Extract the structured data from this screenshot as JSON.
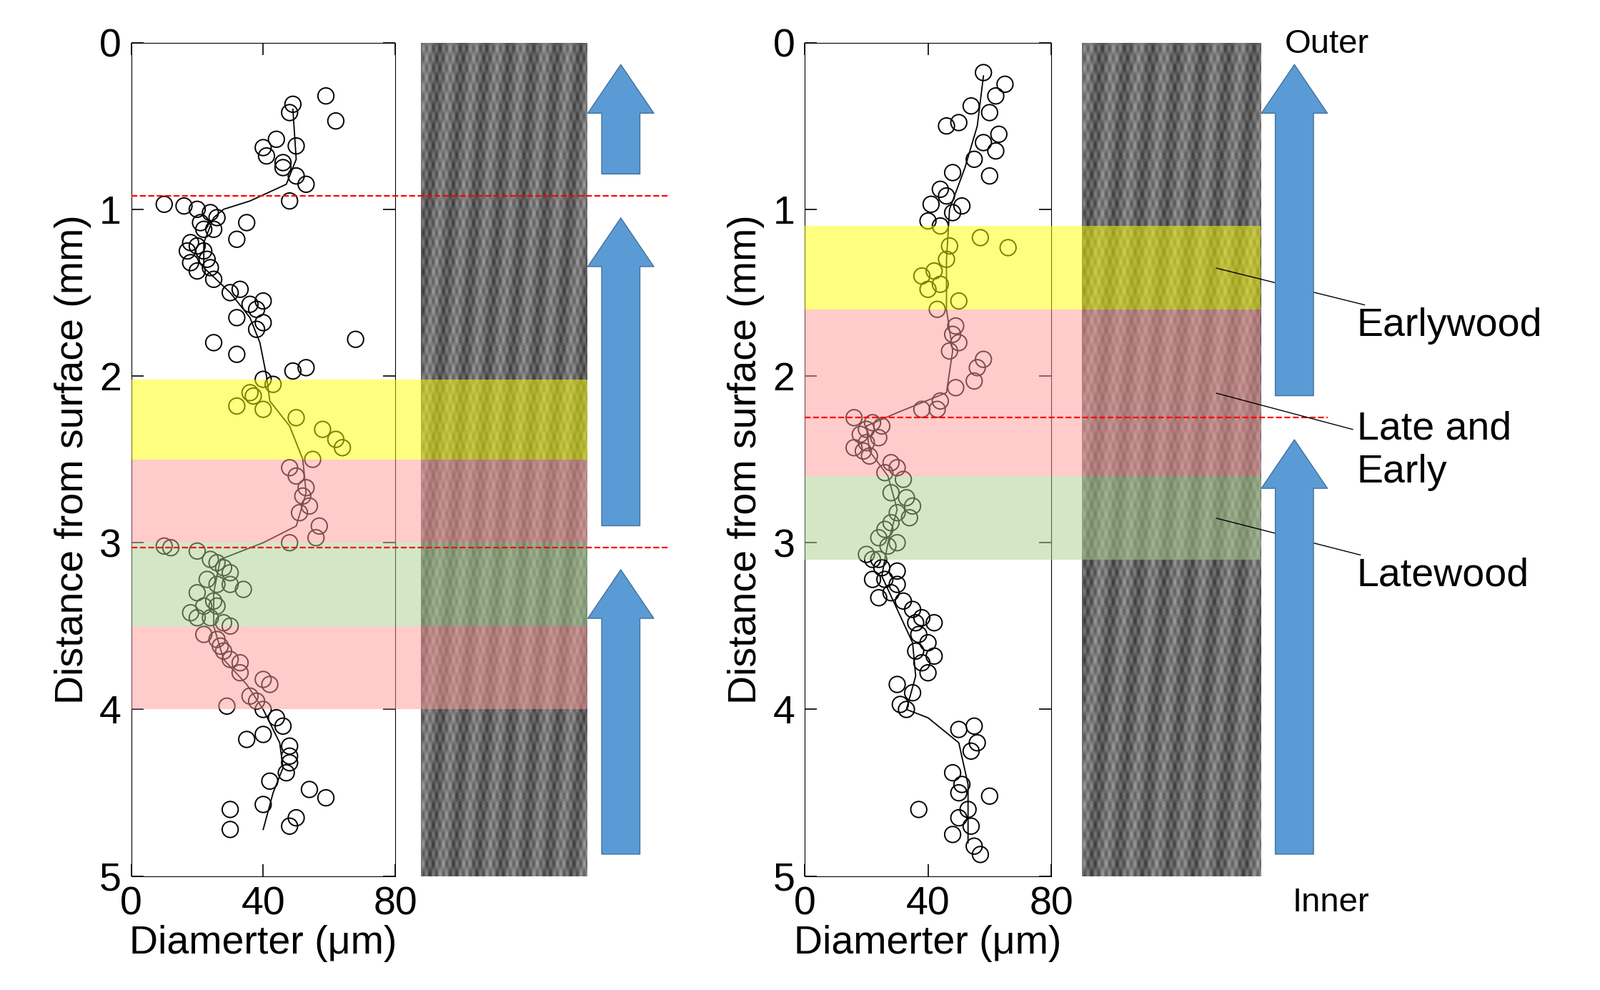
{
  "chart_data": [
    {
      "type": "scatter",
      "x_label": "Diamerter (μm)",
      "y_label": "Distance from surface (mm)",
      "color": "#000000",
      "marker": "o",
      "line_style": "solid",
      "x": [
        59,
        49,
        48,
        62,
        44,
        50,
        40,
        41,
        46,
        46,
        50,
        53,
        48,
        10,
        16,
        20,
        24,
        26,
        21,
        35,
        22,
        25,
        32,
        18,
        20,
        17,
        22,
        23,
        18,
        24,
        20,
        25,
        33,
        30,
        40,
        36,
        38,
        32,
        40,
        38,
        68,
        25,
        32,
        53,
        49,
        40,
        43,
        36,
        37,
        32,
        40,
        50,
        58,
        62,
        64,
        55,
        48,
        50,
        53,
        52,
        54,
        51,
        57,
        56,
        48,
        10,
        12,
        20,
        24,
        26,
        28,
        30,
        23,
        26,
        30,
        34,
        20,
        25,
        22,
        26,
        18,
        20,
        24,
        28,
        30,
        22,
        26,
        27,
        28,
        30,
        33,
        33,
        40,
        42,
        36,
        38,
        29,
        40,
        44,
        46,
        40,
        35,
        48,
        48,
        48,
        47,
        42,
        54,
        59,
        40,
        30,
        50,
        48,
        30
      ],
      "y": [
        0.32,
        0.37,
        0.42,
        0.47,
        0.58,
        0.62,
        0.63,
        0.68,
        0.72,
        0.75,
        0.8,
        0.85,
        0.95,
        0.97,
        0.98,
        1.0,
        1.02,
        1.05,
        1.08,
        1.08,
        1.12,
        1.12,
        1.18,
        1.2,
        1.22,
        1.25,
        1.25,
        1.3,
        1.32,
        1.35,
        1.37,
        1.42,
        1.48,
        1.5,
        1.55,
        1.57,
        1.6,
        1.65,
        1.68,
        1.72,
        1.78,
        1.8,
        1.87,
        1.95,
        1.97,
        2.02,
        2.05,
        2.1,
        2.12,
        2.18,
        2.2,
        2.25,
        2.32,
        2.38,
        2.43,
        2.5,
        2.55,
        2.6,
        2.67,
        2.72,
        2.78,
        2.82,
        2.9,
        2.97,
        3.0,
        3.02,
        3.03,
        3.05,
        3.1,
        3.12,
        3.15,
        3.18,
        3.22,
        3.25,
        3.25,
        3.28,
        3.3,
        3.35,
        3.38,
        3.38,
        3.42,
        3.45,
        3.45,
        3.48,
        3.5,
        3.55,
        3.58,
        3.62,
        3.65,
        3.7,
        3.72,
        3.78,
        3.82,
        3.85,
        3.92,
        3.95,
        3.98,
        4.0,
        4.05,
        4.1,
        4.15,
        4.18,
        4.22,
        4.28,
        4.32,
        4.38,
        4.43,
        4.48,
        4.53,
        4.57,
        4.6,
        4.65,
        4.7,
        4.72
      ],
      "trend": {
        "x": [
          49,
          50,
          47,
          36,
          28,
          25,
          22,
          22,
          30,
          36,
          39,
          41,
          42,
          48,
          52,
          53,
          50,
          40,
          27,
          25,
          25,
          28,
          35,
          40,
          45,
          46,
          43,
          40
        ],
        "y": [
          0.4,
          0.7,
          0.85,
          0.95,
          1.0,
          1.05,
          1.2,
          1.35,
          1.5,
          1.65,
          1.8,
          2.0,
          2.15,
          2.3,
          2.5,
          2.7,
          2.9,
          3.0,
          3.1,
          3.3,
          3.5,
          3.7,
          3.85,
          4.0,
          4.2,
          4.35,
          4.5,
          4.72
        ]
      },
      "xlim": [
        0,
        80
      ],
      "xticks": [
        0,
        40,
        80
      ],
      "ylim": [
        5,
        0
      ],
      "yticks": [
        0,
        1,
        2,
        3,
        4,
        5
      ],
      "bands": [
        {
          "range": [
            2.02,
            2.5
          ],
          "color": "#ffff00"
        },
        {
          "range": [
            2.5,
            3.0
          ],
          "color": "#ff9999"
        },
        {
          "range": [
            3.0,
            3.5
          ],
          "color": "#a9d18e"
        },
        {
          "range": [
            3.5,
            4.0
          ],
          "color": "#ff9999"
        }
      ],
      "dividers": [
        0.92,
        3.03
      ]
    },
    {
      "type": "scatter",
      "x_label": "Diamerter (μm)",
      "y_label": "Distance from surface (mm)",
      "color": "#000000",
      "marker": "o",
      "line_style": "solid",
      "x": [
        58,
        65,
        62,
        54,
        60,
        50,
        46,
        63,
        58,
        62,
        55,
        48,
        60,
        44,
        46,
        41,
        51,
        48,
        40,
        44,
        57,
        66,
        47,
        46,
        42,
        38,
        44,
        40,
        50,
        43,
        49,
        48,
        50,
        47,
        58,
        56,
        55,
        49,
        44,
        43,
        38,
        16,
        22,
        25,
        20,
        18,
        24,
        20,
        16,
        19,
        21,
        28,
        30,
        26,
        32,
        28,
        33,
        35,
        30,
        34,
        28,
        26,
        24,
        30,
        27,
        20,
        22,
        24,
        25,
        30,
        22,
        26,
        30,
        28,
        24,
        32,
        35,
        38,
        36,
        42,
        37,
        40,
        36,
        42,
        38,
        40,
        30,
        35,
        31,
        33,
        50,
        55,
        56,
        54,
        48,
        51,
        50,
        60,
        37,
        53,
        50,
        54,
        48,
        55,
        57
      ],
      "y": [
        0.18,
        0.25,
        0.32,
        0.38,
        0.42,
        0.48,
        0.5,
        0.55,
        0.6,
        0.65,
        0.7,
        0.78,
        0.8,
        0.88,
        0.92,
        0.97,
        0.98,
        1.02,
        1.07,
        1.1,
        1.17,
        1.23,
        1.22,
        1.3,
        1.37,
        1.4,
        1.45,
        1.48,
        1.55,
        1.6,
        1.7,
        1.75,
        1.8,
        1.85,
        1.9,
        1.95,
        2.03,
        2.07,
        2.15,
        2.2,
        2.2,
        2.25,
        2.28,
        2.3,
        2.32,
        2.35,
        2.37,
        2.4,
        2.43,
        2.45,
        2.48,
        2.52,
        2.55,
        2.58,
        2.62,
        2.7,
        2.73,
        2.78,
        2.82,
        2.85,
        2.88,
        2.92,
        2.97,
        3.0,
        3.02,
        3.07,
        3.1,
        3.1,
        3.15,
        3.17,
        3.22,
        3.22,
        3.25,
        3.3,
        3.33,
        3.35,
        3.4,
        3.45,
        3.48,
        3.48,
        3.55,
        3.6,
        3.65,
        3.68,
        3.72,
        3.78,
        3.85,
        3.9,
        3.97,
        4.0,
        4.12,
        4.1,
        4.2,
        4.25,
        4.38,
        4.45,
        4.5,
        4.52,
        4.6,
        4.6,
        4.65,
        4.7,
        4.75,
        4.82,
        4.87
      ],
      "trend": {
        "x": [
          58,
          56,
          52,
          47,
          46,
          46,
          48,
          46,
          30,
          20,
          21,
          27,
          30,
          27,
          25,
          30,
          35,
          36,
          33,
          40,
          50,
          53,
          53
        ],
        "y": [
          0.2,
          0.5,
          0.75,
          1.0,
          1.3,
          1.6,
          1.85,
          2.1,
          2.22,
          2.3,
          2.45,
          2.6,
          2.8,
          3.0,
          3.2,
          3.4,
          3.6,
          3.8,
          4.0,
          4.05,
          4.2,
          4.45,
          4.8
        ]
      },
      "xlim": [
        0,
        80
      ],
      "xticks": [
        0,
        40,
        80
      ],
      "ylim": [
        5,
        0
      ],
      "yticks": [
        0,
        1,
        2,
        3,
        4,
        5
      ],
      "bands": [
        {
          "range": [
            1.1,
            1.6
          ],
          "color": "#ffff00",
          "label": "Earlywood"
        },
        {
          "range": [
            1.6,
            2.6
          ],
          "color": "#ff9999",
          "label": "Late and\nEarly"
        },
        {
          "range": [
            2.6,
            3.1
          ],
          "color": "#a9d18e",
          "label": "Latewood"
        }
      ],
      "dividers": [
        2.25
      ],
      "top_label": "Outer",
      "bottom_label": "Inner"
    }
  ]
}
